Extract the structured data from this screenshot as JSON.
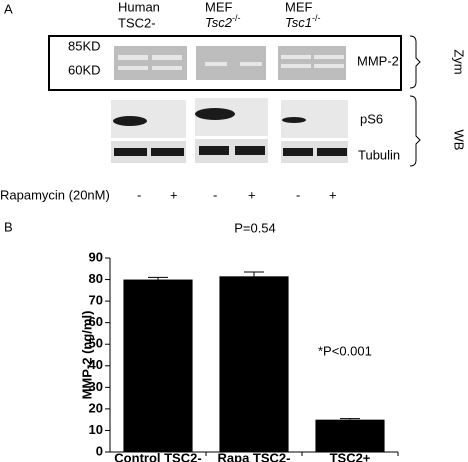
{
  "panel_a": {
    "label": "A",
    "groups": [
      {
        "line1": "Human",
        "line2": "TSC2-"
      },
      {
        "line1": "MEF",
        "gene": "Tsc2",
        "sup": "-/-"
      },
      {
        "line1": "MEF",
        "gene": "Tsc1",
        "sup": "-/-"
      }
    ],
    "markers": [
      "85KD",
      "60KD"
    ],
    "rows": [
      "MMP-2",
      "pS6",
      "Tubulin"
    ],
    "brackets": [
      "Zym",
      "WB"
    ],
    "treatment": "Rapamycin (20nM)",
    "lanes": [
      "-",
      "+",
      "-",
      "+",
      "-",
      "+"
    ]
  },
  "chart_data": {
    "type": "bar",
    "panel_label": "B",
    "annotations": [
      "P=0.54",
      "*P<0.001"
    ],
    "y_label": "MMP-2 (ng/ml)",
    "categories": [
      "Control TSC2-",
      "Rapa TSC2-",
      "TSC2+"
    ],
    "values": [
      80,
      81.5,
      15
    ],
    "errors": [
      1,
      2,
      0.5
    ],
    "color": "#000000",
    "ylim": [
      0,
      90
    ],
    "yticks": [
      0,
      10,
      20,
      30,
      40,
      50,
      60,
      70,
      80,
      90
    ]
  }
}
